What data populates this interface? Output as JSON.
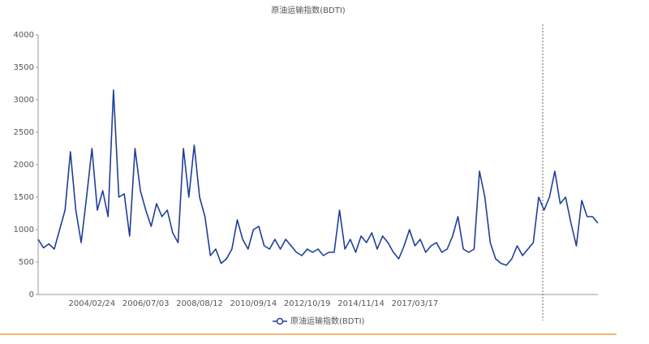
{
  "chart_data": {
    "type": "line",
    "title": "原油运输指数(BDTI)",
    "categories": [
      null,
      null,
      null,
      null,
      null,
      null,
      null,
      null,
      null,
      null,
      "2004/02/24",
      null,
      null,
      null,
      null,
      null,
      null,
      null,
      null,
      null,
      "2006/07/03",
      null,
      null,
      null,
      null,
      null,
      null,
      null,
      null,
      null,
      "2008/08/12",
      null,
      null,
      null,
      null,
      null,
      null,
      null,
      null,
      null,
      "2010/09/14",
      null,
      null,
      null,
      null,
      null,
      null,
      null,
      null,
      null,
      "2012/10/19",
      null,
      null,
      null,
      null,
      null,
      null,
      null,
      null,
      null,
      "2014/11/14",
      null,
      null,
      null,
      null,
      null,
      null,
      null,
      null,
      null,
      "2017/03/17",
      null,
      null,
      null,
      null,
      null,
      null,
      null,
      null,
      null,
      null,
      null,
      null,
      null,
      null,
      null,
      null,
      null,
      null,
      null,
      null,
      null,
      null,
      null,
      null,
      null,
      null,
      null,
      null,
      null,
      null,
      null,
      null,
      null,
      null
    ],
    "series": [
      {
        "name": "原油运输指数(BDTI)",
        "color": "#1f3f99",
        "values": [
          850,
          720,
          780,
          700,
          1000,
          1300,
          2200,
          1300,
          800,
          1500,
          2250,
          1300,
          1600,
          1200,
          3150,
          1500,
          1550,
          900,
          2250,
          1600,
          1300,
          1050,
          1400,
          1200,
          1300,
          950,
          800,
          2250,
          1500,
          2300,
          1500,
          1200,
          600,
          700,
          480,
          550,
          700,
          1150,
          850,
          700,
          1000,
          1050,
          750,
          700,
          850,
          700,
          850,
          750,
          650,
          600,
          700,
          650,
          700,
          600,
          650,
          650,
          1300,
          700,
          850,
          650,
          900,
          800,
          950,
          700,
          900,
          800,
          650,
          550,
          750,
          1000,
          750,
          850,
          650,
          750,
          800,
          650,
          700,
          900,
          1200,
          700,
          650,
          700,
          1900,
          1500,
          800,
          550,
          480,
          450,
          550,
          750,
          600,
          700,
          800,
          1500,
          1300,
          1500,
          1900,
          1400,
          1500,
          1100,
          750,
          1450,
          1200,
          1200,
          1100
        ]
      }
    ],
    "ylim": [
      0,
      4000
    ],
    "yticks": [
      0,
      500,
      1000,
      1500,
      2000,
      2500,
      3000,
      3500,
      4000
    ],
    "grid": false,
    "legend": "bottom"
  }
}
